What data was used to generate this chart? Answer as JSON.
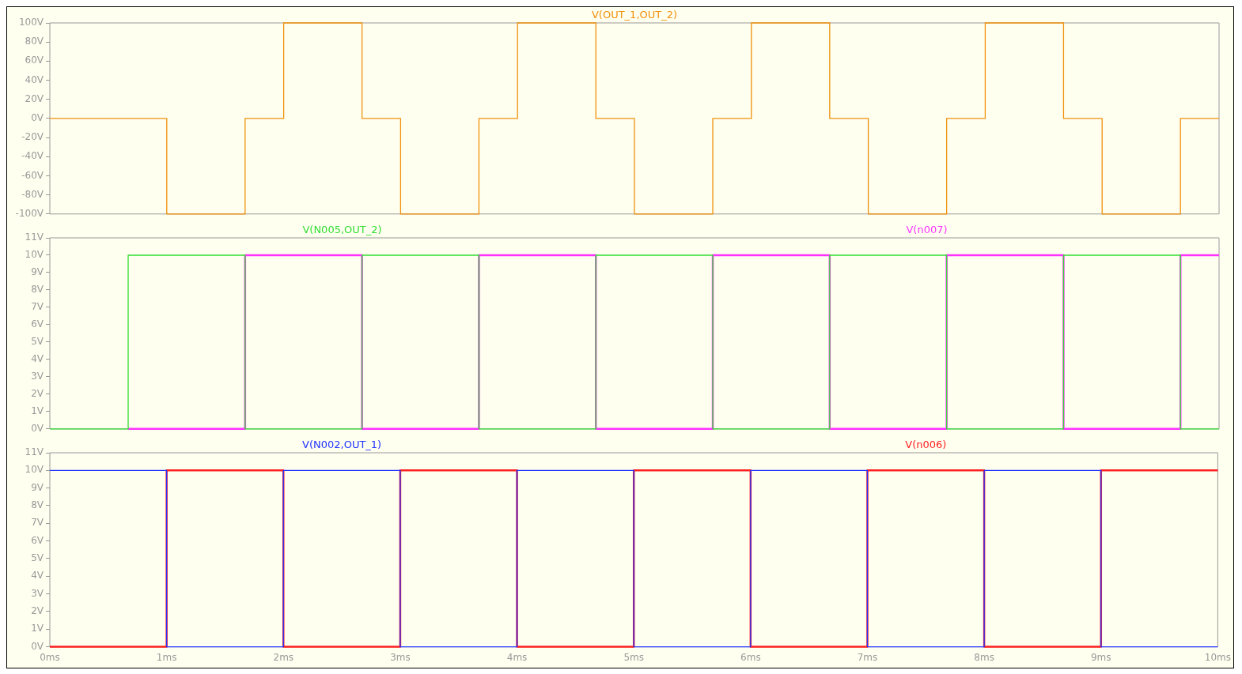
{
  "chart_data": [
    {
      "type": "step",
      "legend": "top",
      "marker": "none",
      "grid": false,
      "tick_labels": "y",
      "xlim": [
        0,
        10
      ],
      "ylim": [
        -100,
        100
      ],
      "yticks": [
        {
          "value": -100,
          "label": "-100V"
        },
        {
          "value": -80,
          "label": "-80V"
        },
        {
          "value": -60,
          "label": "-60V"
        },
        {
          "value": -40,
          "label": "-40V"
        },
        {
          "value": -20,
          "label": "-20V"
        },
        {
          "value": 0,
          "label": "0V"
        },
        {
          "value": 20,
          "label": "20V"
        },
        {
          "value": 40,
          "label": "40V"
        },
        {
          "value": 60,
          "label": "60V"
        },
        {
          "value": 80,
          "label": "80V"
        },
        {
          "value": 100,
          "label": "100V"
        }
      ],
      "series": [
        {
          "name": "V(OUT_1,OUT_2)",
          "color": "#f0900a",
          "x": [
            0,
            1,
            1.67,
            2,
            2.67,
            3,
            3.67,
            4,
            4.67,
            5,
            5.67,
            6,
            6.67,
            7,
            7.67,
            8,
            8.67,
            9,
            9.67,
            10
          ],
          "values": [
            0,
            -100,
            0,
            100,
            0,
            -100,
            0,
            100,
            0,
            -100,
            0,
            100,
            0,
            -100,
            0,
            100,
            0,
            -100,
            0,
            0
          ]
        }
      ]
    },
    {
      "type": "step",
      "legend": "top",
      "marker": "none",
      "grid": false,
      "tick_labels": "y",
      "xlim": [
        0,
        10
      ],
      "ylim": [
        0,
        11
      ],
      "yticks": [
        {
          "value": 0,
          "label": "0V"
        },
        {
          "value": 1,
          "label": "1V"
        },
        {
          "value": 2,
          "label": "2V"
        },
        {
          "value": 3,
          "label": "3V"
        },
        {
          "value": 4,
          "label": "4V"
        },
        {
          "value": 5,
          "label": "5V"
        },
        {
          "value": 6,
          "label": "6V"
        },
        {
          "value": 7,
          "label": "7V"
        },
        {
          "value": 8,
          "label": "8V"
        },
        {
          "value": 9,
          "label": "9V"
        },
        {
          "value": 10,
          "label": "10V"
        },
        {
          "value": 11,
          "label": "11V"
        }
      ],
      "series": [
        {
          "name": "V(N005,OUT_2)",
          "color": "#33dd33",
          "x": [
            0,
            0.67,
            1.67,
            2.67,
            3.67,
            4.67,
            5.67,
            6.67,
            7.67,
            8.67,
            9.67,
            10
          ],
          "values": [
            0,
            10,
            0,
            10,
            0,
            10,
            0,
            10,
            0,
            10,
            0,
            0
          ]
        },
        {
          "name": "V(n007)",
          "color": "#ff33ff",
          "x": [
            0.67,
            1.67,
            2.67,
            3.67,
            4.67,
            5.67,
            6.67,
            7.67,
            8.67,
            9.67,
            10
          ],
          "values": [
            0,
            10,
            0,
            10,
            0,
            10,
            0,
            10,
            0,
            10,
            10
          ]
        }
      ]
    },
    {
      "type": "step",
      "legend": "top",
      "marker": "none",
      "grid": false,
      "xlim": [
        0,
        10
      ],
      "ylim": [
        0,
        11
      ],
      "xticks": [
        {
          "value": 0,
          "label": "0ms"
        },
        {
          "value": 1,
          "label": "1ms"
        },
        {
          "value": 2,
          "label": "2ms"
        },
        {
          "value": 3,
          "label": "3ms"
        },
        {
          "value": 4,
          "label": "4ms"
        },
        {
          "value": 5,
          "label": "5ms"
        },
        {
          "value": 6,
          "label": "6ms"
        },
        {
          "value": 7,
          "label": "7ms"
        },
        {
          "value": 8,
          "label": "8ms"
        },
        {
          "value": 9,
          "label": "9ms"
        },
        {
          "value": 10,
          "label": "10ms"
        }
      ],
      "yticks": [
        {
          "value": 0,
          "label": "0V"
        },
        {
          "value": 1,
          "label": "1V"
        },
        {
          "value": 2,
          "label": "2V"
        },
        {
          "value": 3,
          "label": "3V"
        },
        {
          "value": 4,
          "label": "4V"
        },
        {
          "value": 5,
          "label": "5V"
        },
        {
          "value": 6,
          "label": "6V"
        },
        {
          "value": 7,
          "label": "7V"
        },
        {
          "value": 8,
          "label": "8V"
        },
        {
          "value": 9,
          "label": "9V"
        },
        {
          "value": 10,
          "label": "10V"
        },
        {
          "value": 11,
          "label": "11V"
        }
      ],
      "series": [
        {
          "name": "V(N002,OUT_1)",
          "color": "#2233ff",
          "x": [
            0,
            1,
            2,
            3,
            4,
            5,
            6,
            7,
            8,
            9,
            10
          ],
          "values": [
            10,
            0,
            10,
            0,
            10,
            0,
            10,
            0,
            10,
            0,
            0
          ]
        },
        {
          "name": "V(n006)",
          "color": "#ff2020",
          "x": [
            0,
            1,
            2,
            3,
            4,
            5,
            6,
            7,
            8,
            9,
            10
          ],
          "values": [
            0,
            10,
            0,
            10,
            0,
            10,
            0,
            10,
            0,
            10,
            10
          ]
        }
      ]
    }
  ]
}
